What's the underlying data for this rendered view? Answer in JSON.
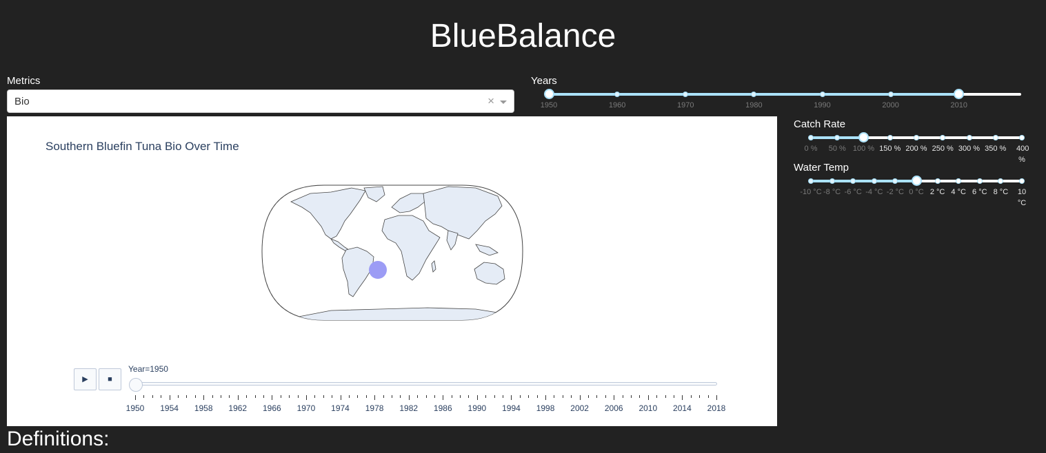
{
  "app": {
    "title": "BlueBalance"
  },
  "metrics": {
    "label": "Metrics",
    "value": "Bio",
    "clear_glyph": "×"
  },
  "years": {
    "label": "Years",
    "marks": [
      "1950",
      "1960",
      "1970",
      "1980",
      "1990",
      "2000",
      "2010"
    ],
    "range": [
      1950,
      2010
    ]
  },
  "catch_rate": {
    "label": "Catch Rate",
    "marks": [
      "0 %",
      "50 %",
      "100 %",
      "150 %",
      "200 %",
      "250 %",
      "300 %",
      "350 %",
      "400 %"
    ],
    "value_percent": 100
  },
  "water_temp": {
    "label": "Water Temp",
    "marks": [
      "-10 °C",
      "-8 °C",
      "-6 °C",
      "-4 °C",
      "-2 °C",
      "0 °C",
      "2 °C",
      "4 °C",
      "6 °C",
      "8 °C",
      "10 °C"
    ],
    "value_celsius": 0
  },
  "graph": {
    "title": "Southern Bluefin Tuna Bio Over Time",
    "marker_color": "#9c9cf5",
    "land_color": "#e5ecf6",
    "play_icon": "play-icon",
    "stop_icon": "stop-icon",
    "play_glyph": "▶",
    "stop_glyph": "■",
    "slider_current": "Year=1950",
    "slider_labels": [
      "1950",
      "1954",
      "1958",
      "1962",
      "1966",
      "1970",
      "1974",
      "1978",
      "1982",
      "1986",
      "1990",
      "1994",
      "1998",
      "2002",
      "2006",
      "2010",
      "2014",
      "2018"
    ]
  },
  "definitions": {
    "title": "Definitions:"
  }
}
